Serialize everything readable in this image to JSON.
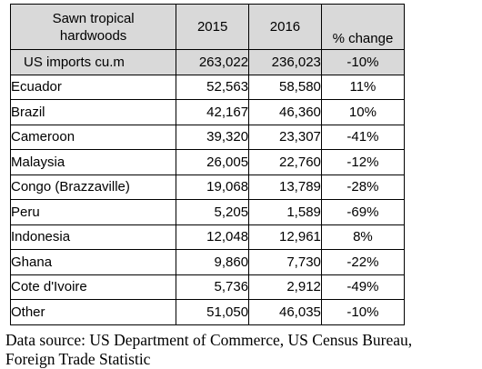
{
  "table": {
    "header": {
      "label_line1": "Sawn tropical",
      "label_line2": "hardwoods",
      "year1": "2015",
      "year2": "2016",
      "change": "% change"
    },
    "total": {
      "name": "US imports cu.m",
      "v2015": "263,022",
      "v2016": "236,023",
      "change": "-10%"
    },
    "rows": [
      {
        "name": "Ecuador",
        "v2015": "52,563",
        "v2016": "58,580",
        "change": "11%"
      },
      {
        "name": "Brazil",
        "v2015": "42,167",
        "v2016": "46,360",
        "change": "10%"
      },
      {
        "name": "Cameroon",
        "v2015": "39,320",
        "v2016": "23,307",
        "change": "-41%"
      },
      {
        "name": "Malaysia",
        "v2015": "26,005",
        "v2016": "22,760",
        "change": "-12%"
      },
      {
        "name": "Congo (Brazzaville)",
        "v2015": "19,068",
        "v2016": "13,789",
        "change": "-28%"
      },
      {
        "name": "Peru",
        "v2015": "5,205",
        "v2016": "1,589",
        "change": "-69%"
      },
      {
        "name": "Indonesia",
        "v2015": "12,048",
        "v2016": "12,961",
        "change": "8%"
      },
      {
        "name": "Ghana",
        "v2015": "9,860",
        "v2016": "7,730",
        "change": "-22%"
      },
      {
        "name": "Cote d'Ivoire",
        "v2015": "5,736",
        "v2016": "2,912",
        "change": "-49%"
      },
      {
        "name": "Other",
        "v2015": "51,050",
        "v2016": "46,035",
        "change": "-10%"
      }
    ]
  },
  "source": {
    "line1": "Data source: US Department of Commerce, US Census Bureau,",
    "line2": "Foreign Trade Statistic"
  },
  "colors": {
    "header_fill": "#d9d9d9",
    "border": "#000000"
  }
}
